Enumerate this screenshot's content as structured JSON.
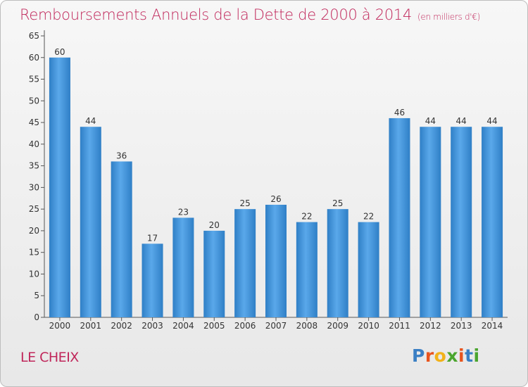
{
  "chart_data": {
    "type": "bar",
    "title": "Remboursements Annuels de la Dette de 2000 à 2014",
    "subtitle": "(en milliers d'€)",
    "categories": [
      "2000",
      "2001",
      "2002",
      "2003",
      "2004",
      "2005",
      "2006",
      "2007",
      "2008",
      "2009",
      "2010",
      "2011",
      "2012",
      "2013",
      "2014"
    ],
    "values": [
      60,
      44,
      36,
      17,
      23,
      20,
      25,
      26,
      22,
      25,
      22,
      46,
      44,
      44,
      44
    ],
    "ylim": [
      0,
      65
    ],
    "yticks": [
      0,
      5,
      10,
      15,
      20,
      25,
      30,
      35,
      40,
      45,
      50,
      55,
      60,
      65
    ],
    "grid": false,
    "bar_color": "#3d8fd6"
  },
  "commune": "LE CHEIX",
  "logo": {
    "letters": [
      "P",
      "r",
      "o",
      "x",
      "i",
      "t",
      "i"
    ],
    "colors": [
      "#3a7fc4",
      "#e8541e",
      "#f2b21a",
      "#4aa52e",
      "#e8541e",
      "#3a7fc4",
      "#4aa52e"
    ]
  }
}
